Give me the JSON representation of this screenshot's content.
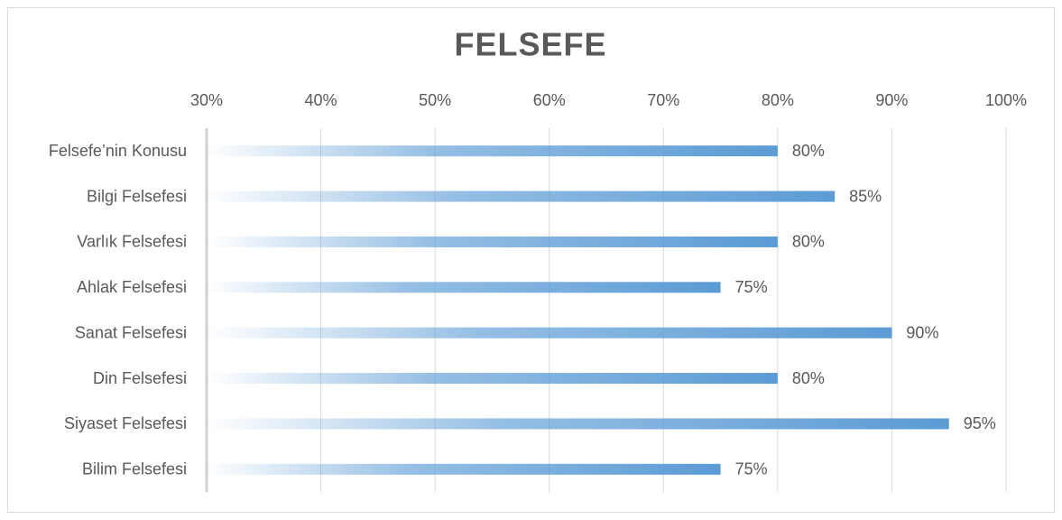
{
  "chart_data": {
    "type": "hbar",
    "title": "FELSEFE",
    "categories": [
      "Felsefe’nin Konusu",
      "Bilgi Felsefesi",
      "Varlık Felsefesi",
      "Ahlak Felsefesi",
      "Sanat Felsefesi",
      "Din Felsefesi",
      "Siyaset Felsefesi",
      "Bilim Felsefesi"
    ],
    "values": [
      80,
      85,
      80,
      75,
      90,
      80,
      95,
      75
    ],
    "value_labels": [
      "80%",
      "85%",
      "80%",
      "75%",
      "90%",
      "80%",
      "95%",
      "75%"
    ],
    "color": "#5b9bd5",
    "xlim": [
      30,
      100
    ],
    "xticks": [
      {
        "value": 30,
        "label": "30%"
      },
      {
        "value": 40,
        "label": "40%"
      },
      {
        "value": 50,
        "label": "50%"
      },
      {
        "value": 60,
        "label": "60%"
      },
      {
        "value": 70,
        "label": "70%"
      },
      {
        "value": 80,
        "label": "80%"
      },
      {
        "value": 90,
        "label": "90%"
      },
      {
        "value": 100,
        "label": "100%"
      }
    ],
    "grid": true
  }
}
